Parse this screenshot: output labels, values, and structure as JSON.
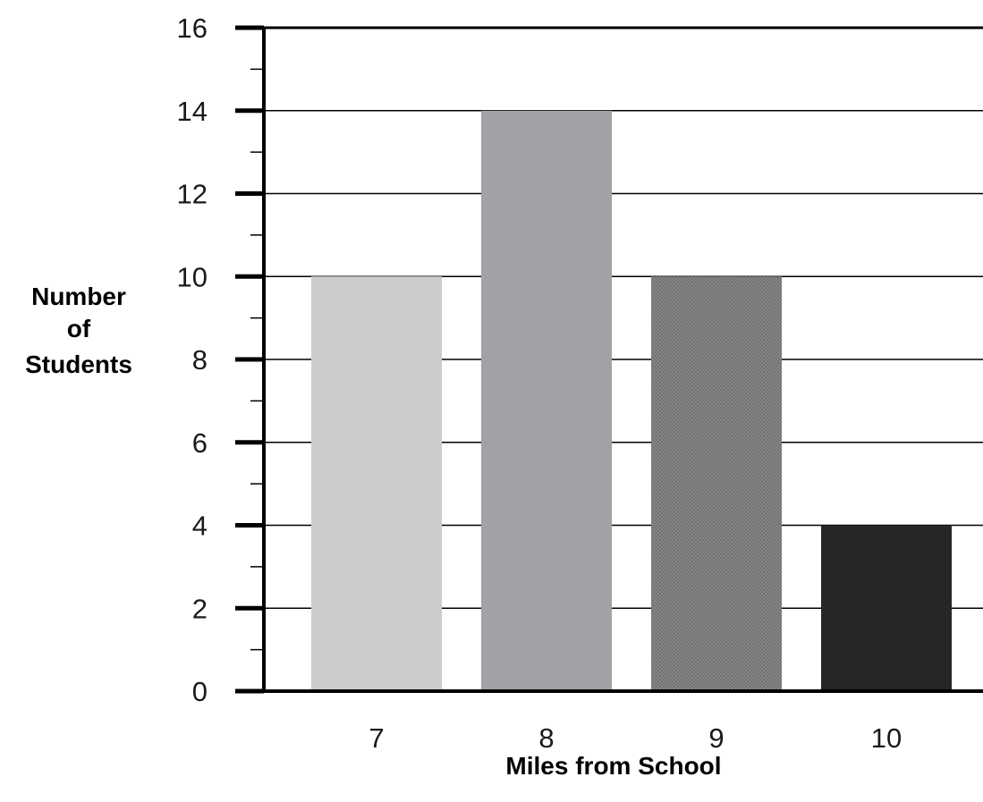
{
  "chart_data": {
    "type": "bar",
    "title": "",
    "xlabel": "Miles from School",
    "ylabel_lines": [
      "Number",
      "of",
      "Students"
    ],
    "categories": [
      "7",
      "8",
      "9",
      "10"
    ],
    "values": [
      10,
      14,
      10,
      4
    ],
    "ylim": [
      0,
      16
    ],
    "y_major_ticks": [
      0,
      2,
      4,
      6,
      8,
      10,
      12,
      14,
      16
    ],
    "y_minor_step": 1,
    "grid": true,
    "legend": "none",
    "bar_colors": [
      "#cccccc",
      "#a2a2a6",
      "#767676",
      "#262626"
    ],
    "bar_patterns": [
      "solid",
      "solid",
      "crosshatch",
      "solid"
    ]
  }
}
